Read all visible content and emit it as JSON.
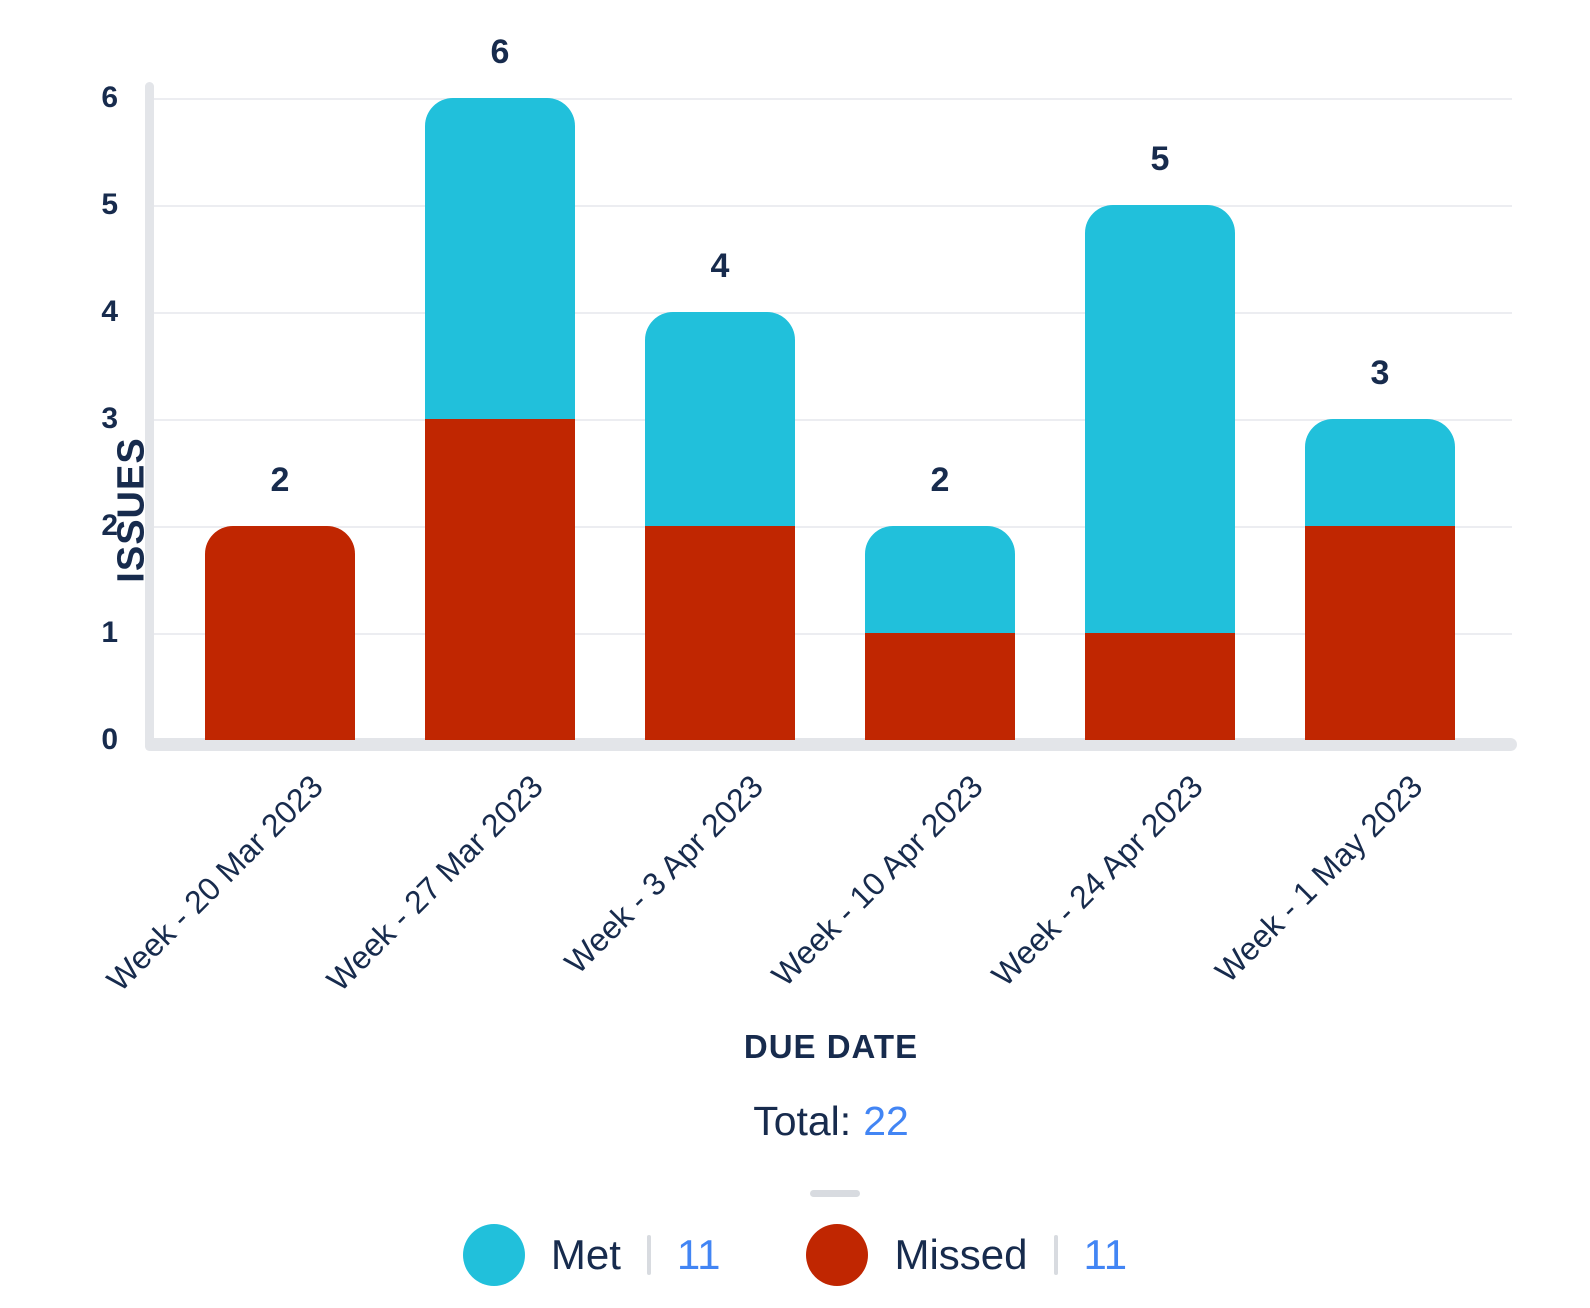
{
  "chart_data": {
    "type": "bar",
    "stacked": true,
    "categories": [
      "Week - 20 Mar 2023",
      "Week - 27 Mar 2023",
      "Week - 3 Apr 2023",
      "Week - 10 Apr 2023",
      "Week - 24 Apr 2023",
      "Week - 1 May 2023"
    ],
    "series": [
      {
        "name": "Met",
        "color": "#21C0DB",
        "values": [
          0,
          3,
          2,
          1,
          4,
          1
        ],
        "total": "11"
      },
      {
        "name": "Missed",
        "color": "#C02601",
        "values": [
          2,
          3,
          2,
          1,
          1,
          2
        ],
        "total": "11"
      }
    ],
    "bar_totals": [
      2,
      6,
      4,
      2,
      5,
      3
    ],
    "xlabel": "DUE DATE",
    "ylabel": "ISSUES",
    "ylim": [
      0,
      6
    ],
    "yticks": [
      0,
      1,
      2,
      3,
      4,
      5,
      6
    ],
    "grid": true,
    "legend_position": "bottom"
  },
  "footer": {
    "total_label": "Total:",
    "total_value": "22"
  },
  "colors": {
    "text_navy": "#172B4D",
    "count_blue": "#4285F4",
    "gridline": "#ECEDF1",
    "axis": "#E3E5E9",
    "met_cyan": "#21C0DB",
    "missed_red": "#C02601"
  }
}
